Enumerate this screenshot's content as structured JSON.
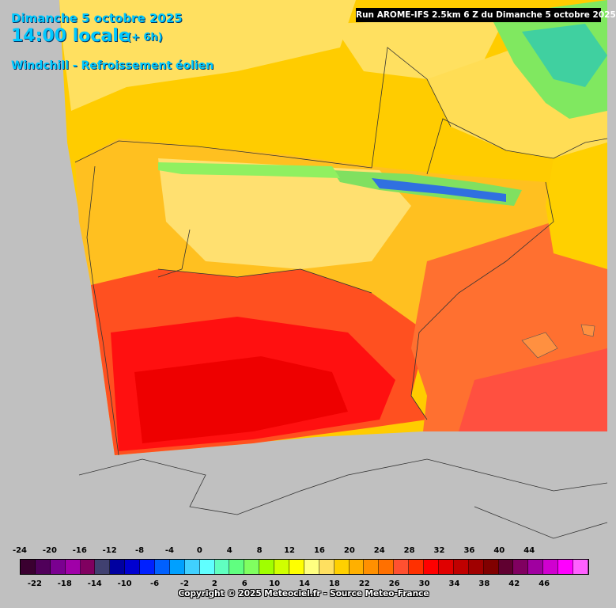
{
  "header": {
    "date": "Dimanche 5 octobre 2025",
    "time": "14:00 locale",
    "lead": "(+ 6h)",
    "parameter": "Windchill - Refroissement éolien",
    "run": "Run AROME-IFS 2.5km 6 Z du Dimanche 5 octobre 2025"
  },
  "legend": {
    "top_ticks": [
      "-24",
      "-20",
      "-16",
      "-12",
      "-8",
      "-4",
      "0",
      "4",
      "8",
      "12",
      "16",
      "20",
      "24",
      "28",
      "32",
      "36",
      "40",
      "44"
    ],
    "bottom_ticks": [
      "-22",
      "-18",
      "-14",
      "-10",
      "-6",
      "-2",
      "2",
      "6",
      "10",
      "14",
      "18",
      "22",
      "26",
      "30",
      "34",
      "38",
      "42",
      "46"
    ],
    "colors": [
      "#3a0030",
      "#50005a",
      "#7a0090",
      "#a000a8",
      "#800060",
      "#404070",
      "#0000a0",
      "#0000d0",
      "#0020ff",
      "#0060ff",
      "#00a0ff",
      "#40d0ff",
      "#60ffff",
      "#60ffc0",
      "#60ff80",
      "#80ff60",
      "#a0ff00",
      "#d0ff00",
      "#ffff00",
      "#ffff80",
      "#ffe060",
      "#ffd000",
      "#ffb000",
      "#ff9000",
      "#ff7000",
      "#ff5030",
      "#ff3000",
      "#ff0000",
      "#e00000",
      "#c00000",
      "#a00000",
      "#800000",
      "#600030",
      "#800060",
      "#a000a0",
      "#d000d0",
      "#ff00ff",
      "#ff60ff"
    ]
  },
  "copyright": "Copyright © 2025 Meteociel.fr - Source Meteo-France"
}
